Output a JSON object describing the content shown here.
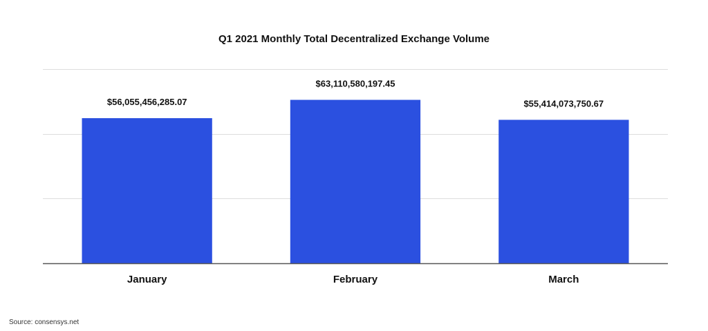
{
  "chart_data": {
    "type": "bar",
    "title": "Q1 2021 Monthly Total Decentralized Exchange Volume",
    "categories": [
      "January",
      "February",
      "March"
    ],
    "values": [
      56055456285.07,
      63110580197.45,
      55414073750.67
    ],
    "value_labels": [
      "$56,055,456,285.07",
      "$63,110,580,197.45",
      "$55,414,073,750.67"
    ],
    "xlabel": "",
    "ylabel": "",
    "ylim": [
      0,
      75000000000
    ],
    "y_tick_labels_shown": false,
    "grid": true,
    "legend": "none",
    "bar_color": "#2b50e0",
    "grid_color": "#dddddd",
    "axis_color": "#555555"
  },
  "footer": {
    "source": "Source: consensys.net"
  }
}
